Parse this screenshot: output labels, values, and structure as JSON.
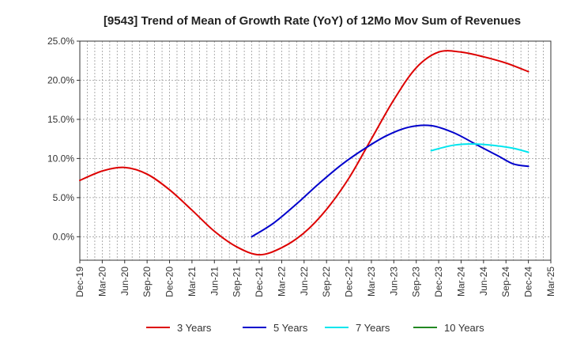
{
  "chart_data": {
    "type": "line",
    "title": "[9543]  Trend of Mean of Growth Rate (YoY) of 12Mo Mov Sum of Revenues",
    "xlabel": "",
    "ylabel": "",
    "x_tick_labels": [
      "Dec-19",
      "Mar-20",
      "Jun-20",
      "Sep-20",
      "Dec-20",
      "Mar-21",
      "Jun-21",
      "Sep-21",
      "Dec-21",
      "Mar-22",
      "Jun-22",
      "Sep-22",
      "Dec-22",
      "Mar-23",
      "Jun-23",
      "Sep-23",
      "Dec-23",
      "Mar-24",
      "Jun-24",
      "Sep-24",
      "Dec-24",
      "Mar-25"
    ],
    "y_ticks": [
      0,
      5,
      10,
      15,
      20,
      25
    ],
    "y_tick_labels": [
      "0.0%",
      "5.0%",
      "10.0%",
      "15.0%",
      "20.0%",
      "25.0%"
    ],
    "ylim": [
      -3,
      25
    ],
    "x_range_index": [
      0,
      63
    ],
    "grid": true,
    "legend_position": "bottom",
    "series": [
      {
        "name": "3 Years",
        "color": "#dd0000",
        "points": [
          [
            0,
            7.2
          ],
          [
            3,
            8.4
          ],
          [
            6,
            8.85
          ],
          [
            9,
            8.0
          ],
          [
            12,
            6.0
          ],
          [
            15,
            3.4
          ],
          [
            18,
            0.7
          ],
          [
            21,
            -1.3
          ],
          [
            24,
            -2.3
          ],
          [
            27,
            -1.4
          ],
          [
            30,
            0.5
          ],
          [
            33,
            3.5
          ],
          [
            36,
            7.5
          ],
          [
            39,
            12.5
          ],
          [
            42,
            17.5
          ],
          [
            45,
            21.6
          ],
          [
            48,
            23.6
          ],
          [
            51,
            23.6
          ],
          [
            54,
            23.0
          ],
          [
            57,
            22.2
          ],
          [
            60,
            21.1
          ]
        ]
      },
      {
        "name": "5 Years",
        "color": "#0000cc",
        "points": [
          [
            23,
            0.0
          ],
          [
            26,
            1.8
          ],
          [
            29,
            4.2
          ],
          [
            32,
            6.8
          ],
          [
            35,
            9.2
          ],
          [
            38,
            11.2
          ],
          [
            41,
            12.9
          ],
          [
            44,
            14.0
          ],
          [
            47,
            14.2
          ],
          [
            50,
            13.3
          ],
          [
            53,
            11.8
          ],
          [
            56,
            10.3
          ],
          [
            58,
            9.3
          ],
          [
            60,
            9.0
          ]
        ]
      },
      {
        "name": "7 Years",
        "color": "#00e5ee",
        "points": [
          [
            47,
            11.0
          ],
          [
            50,
            11.7
          ],
          [
            53,
            11.85
          ],
          [
            56,
            11.6
          ],
          [
            58,
            11.3
          ],
          [
            60,
            10.8
          ]
        ]
      },
      {
        "name": "10 Years",
        "color": "#228822",
        "points": []
      }
    ]
  }
}
